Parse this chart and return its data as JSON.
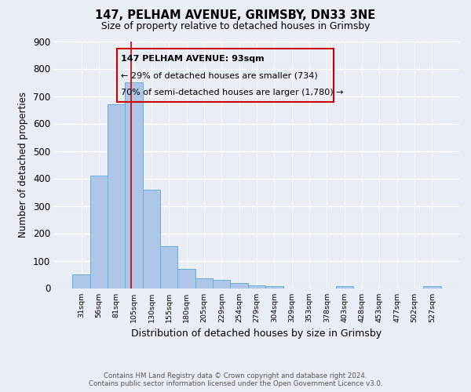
{
  "title": "147, PELHAM AVENUE, GRIMSBY, DN33 3NE",
  "subtitle": "Size of property relative to detached houses in Grimsby",
  "xlabel": "Distribution of detached houses by size in Grimsby",
  "ylabel": "Number of detached properties",
  "bar_labels": [
    "31sqm",
    "56sqm",
    "81sqm",
    "105sqm",
    "130sqm",
    "155sqm",
    "180sqm",
    "205sqm",
    "229sqm",
    "254sqm",
    "279sqm",
    "304sqm",
    "329sqm",
    "353sqm",
    "378sqm",
    "403sqm",
    "428sqm",
    "453sqm",
    "477sqm",
    "502sqm",
    "527sqm"
  ],
  "bar_values": [
    50,
    410,
    670,
    750,
    360,
    152,
    70,
    35,
    30,
    18,
    10,
    8,
    0,
    0,
    0,
    8,
    0,
    0,
    0,
    0,
    8
  ],
  "bar_color": "#aec6e8",
  "bar_edge_color": "#6aadd5",
  "property_line_x": 2.82,
  "annotation_line1": "147 PELHAM AVENUE: 93sqm",
  "annotation_line2": "← 29% of detached houses are smaller (734)",
  "annotation_line3": "70% of semi-detached houses are larger (1,780) →",
  "box_color": "#cc0000",
  "ylim": [
    0,
    900
  ],
  "yticks": [
    0,
    100,
    200,
    300,
    400,
    500,
    600,
    700,
    800,
    900
  ],
  "footer_line1": "Contains HM Land Registry data © Crown copyright and database right 2024.",
  "footer_line2": "Contains public sector information licensed under the Open Government Licence v3.0.",
  "bg_color": "#e8eef4"
}
